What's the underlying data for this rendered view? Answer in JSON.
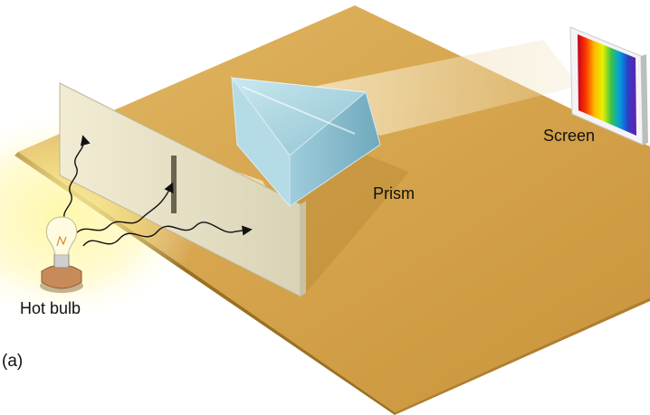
{
  "labels": {
    "bulb": "Hot bulb",
    "prism": "Prism",
    "screen": "Screen",
    "panel": "(a)"
  },
  "colors": {
    "table": "#d6a64c",
    "table_edge": "#9b7022",
    "slit_plate": "#e6e0c2",
    "prism": "#a9d3e0",
    "glow": "#fff6a0"
  },
  "spectrum": [
    "#c4001d",
    "#ff3a00",
    "#ffb800",
    "#e8f000",
    "#3bc24a",
    "#00a0e0",
    "#2b3fc8",
    "#6a1ea8"
  ]
}
